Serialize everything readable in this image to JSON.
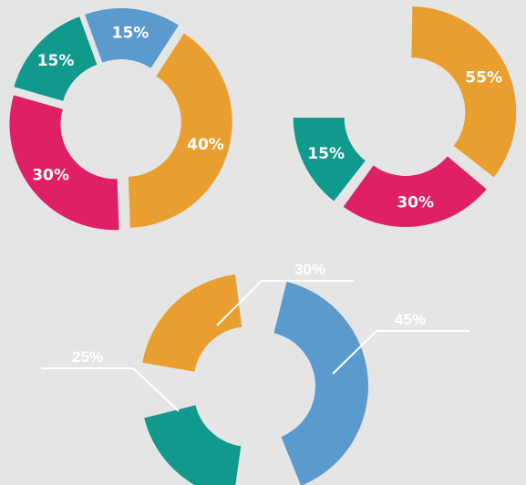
{
  "chart_data": [
    {
      "type": "pie",
      "style": "donut",
      "slices": [
        {
          "label": "40%",
          "value": 40,
          "color": "#e99f30"
        },
        {
          "label": "30%",
          "value": 30,
          "color": "#df1f66"
        },
        {
          "label": "15%",
          "value": 15,
          "color": "#11998e"
        },
        {
          "label": "15%",
          "value": 15,
          "color": "#5a9acd"
        }
      ]
    },
    {
      "type": "pie",
      "style": "partial-donut",
      "slices": [
        {
          "label": "55%",
          "value": 55,
          "color": "#e99f30"
        },
        {
          "label": "30%",
          "value": 30,
          "color": "#df1f66"
        },
        {
          "label": "15%",
          "value": 15,
          "color": "#11998e"
        }
      ]
    },
    {
      "type": "pie",
      "style": "partial-donut-with-leader-lines",
      "slices": [
        {
          "label": "45%",
          "value": 45,
          "color": "#5a9acd"
        },
        {
          "label": "25%",
          "value": 25,
          "color": "#11998e"
        },
        {
          "label": "30%",
          "value": 30,
          "color": "#e99f30"
        }
      ]
    }
  ]
}
